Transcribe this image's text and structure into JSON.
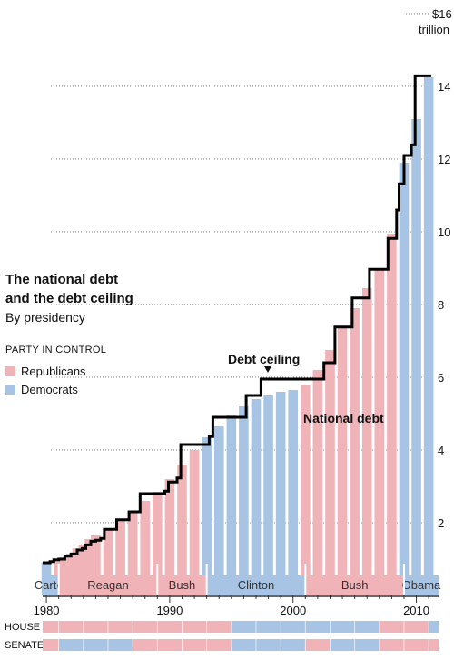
{
  "chart_data": {
    "type": "bar",
    "title_lines": [
      "The national debt",
      "and the debt ceiling"
    ],
    "subtitle": "By presidency",
    "legend": {
      "heading": "PARTY IN CONTROL",
      "items": [
        {
          "label": "Republicans",
          "color": "#f0b3b8"
        },
        {
          "label": "Democrats",
          "color": "#a8c4e4"
        }
      ]
    },
    "annotations": {
      "debt_ceiling": "Debt ceiling",
      "national_debt": "National debt"
    },
    "y_unit_top": "$16",
    "y_unit_bottom": "trillion",
    "ylim": [
      0,
      16
    ],
    "y_ticks": [
      2,
      4,
      6,
      8,
      10,
      12,
      14
    ],
    "xlim": [
      1979.7,
      2011.8
    ],
    "x_ticks": [
      1980,
      1990,
      2000,
      2010
    ],
    "debt_series": [
      {
        "year": 1980,
        "value": 0.91,
        "party": "D"
      },
      {
        "year": 1981,
        "value": 1.0,
        "party": "R"
      },
      {
        "year": 1981.5,
        "value": 1.05,
        "party": "R"
      },
      {
        "year": 1982,
        "value": 1.15,
        "party": "R"
      },
      {
        "year": 1982.5,
        "value": 1.3,
        "party": "R"
      },
      {
        "year": 1983,
        "value": 1.4,
        "party": "R"
      },
      {
        "year": 1983.5,
        "value": 1.55,
        "party": "R"
      },
      {
        "year": 1984,
        "value": 1.65,
        "party": "R"
      },
      {
        "year": 1985,
        "value": 1.85,
        "party": "R"
      },
      {
        "year": 1986,
        "value": 2.1,
        "party": "R"
      },
      {
        "year": 1987,
        "value": 2.3,
        "party": "R"
      },
      {
        "year": 1988,
        "value": 2.6,
        "party": "R"
      },
      {
        "year": 1989,
        "value": 2.85,
        "party": "R"
      },
      {
        "year": 1990,
        "value": 3.2,
        "party": "R"
      },
      {
        "year": 1991,
        "value": 3.6,
        "party": "R"
      },
      {
        "year": 1992,
        "value": 4.0,
        "party": "R"
      },
      {
        "year": 1993,
        "value": 4.35,
        "party": "D"
      },
      {
        "year": 1994,
        "value": 4.65,
        "party": "D"
      },
      {
        "year": 1995,
        "value": 4.95,
        "party": "D"
      },
      {
        "year": 1996,
        "value": 5.2,
        "party": "D"
      },
      {
        "year": 1997,
        "value": 5.4,
        "party": "D"
      },
      {
        "year": 1998,
        "value": 5.5,
        "party": "D"
      },
      {
        "year": 1999,
        "value": 5.6,
        "party": "D"
      },
      {
        "year": 2000,
        "value": 5.65,
        "party": "D"
      },
      {
        "year": 2001,
        "value": 5.8,
        "party": "R"
      },
      {
        "year": 2002,
        "value": 6.2,
        "party": "R"
      },
      {
        "year": 2003,
        "value": 6.75,
        "party": "R"
      },
      {
        "year": 2004,
        "value": 7.35,
        "party": "R"
      },
      {
        "year": 2005,
        "value": 7.9,
        "party": "R"
      },
      {
        "year": 2006,
        "value": 8.45,
        "party": "R"
      },
      {
        "year": 2007,
        "value": 9.0,
        "party": "R"
      },
      {
        "year": 2008,
        "value": 9.95,
        "party": "R"
      },
      {
        "year": 2009,
        "value": 11.9,
        "party": "D"
      },
      {
        "year": 2010,
        "value": 13.1,
        "party": "D"
      },
      {
        "year": 2011,
        "value": 14.25,
        "party": "D"
      }
    ],
    "debt_ceiling_steps": [
      [
        1979.7,
        0.9
      ],
      [
        1980.3,
        0.93
      ],
      [
        1980.6,
        0.98
      ],
      [
        1981.0,
        1.0
      ],
      [
        1981.5,
        1.08
      ],
      [
        1982.0,
        1.14
      ],
      [
        1982.5,
        1.25
      ],
      [
        1982.9,
        1.29
      ],
      [
        1983.2,
        1.39
      ],
      [
        1983.6,
        1.49
      ],
      [
        1984.0,
        1.52
      ],
      [
        1984.4,
        1.57
      ],
      [
        1984.7,
        1.82
      ],
      [
        1985.7,
        2.08
      ],
      [
        1986.7,
        2.3
      ],
      [
        1987.6,
        2.8
      ],
      [
        1989.6,
        2.87
      ],
      [
        1989.9,
        3.12
      ],
      [
        1990.6,
        3.23
      ],
      [
        1990.9,
        4.15
      ],
      [
        1993.2,
        4.37
      ],
      [
        1993.5,
        4.9
      ],
      [
        1996.2,
        5.5
      ],
      [
        1997.4,
        5.95
      ],
      [
        2002.5,
        6.4
      ],
      [
        2003.4,
        7.38
      ],
      [
        2004.8,
        8.18
      ],
      [
        2006.2,
        8.97
      ],
      [
        2007.7,
        9.82
      ],
      [
        2008.4,
        10.6
      ],
      [
        2008.6,
        11.32
      ],
      [
        2009.0,
        12.1
      ],
      [
        2009.6,
        12.39
      ],
      [
        2009.9,
        14.29
      ],
      [
        2011.2,
        14.29
      ]
    ],
    "presidencies": [
      {
        "name": "Carter",
        "start": 1979.7,
        "end": 1981.0,
        "party": "D"
      },
      {
        "name": "Reagan",
        "start": 1981.0,
        "end": 1989.0,
        "party": "R"
      },
      {
        "name": "Bush",
        "start": 1989.0,
        "end": 1993.0,
        "party": "R"
      },
      {
        "name": "Clinton",
        "start": 1993.0,
        "end": 2001.0,
        "party": "D"
      },
      {
        "name": "Bush",
        "start": 2001.0,
        "end": 2009.0,
        "party": "R"
      },
      {
        "name": "Obama",
        "start": 2009.0,
        "end": 2011.8,
        "party": "D"
      }
    ],
    "control_rows": [
      {
        "label": "HOUSE",
        "segments": [
          {
            "start": 1979.7,
            "end": 1995.0,
            "party": "R"
          },
          {
            "start": 1995.0,
            "end": 2007.0,
            "party": "D"
          },
          {
            "start": 2007.0,
            "end": 2011.0,
            "party": "R"
          },
          {
            "start": 2011.0,
            "end": 2011.8,
            "party": "D"
          }
        ]
      },
      {
        "label": "SENATE",
        "segments": [
          {
            "start": 1979.7,
            "end": 1981.0,
            "party": "R"
          },
          {
            "start": 1981.0,
            "end": 1987.0,
            "party": "D"
          },
          {
            "start": 1987.0,
            "end": 1995.0,
            "party": "R"
          },
          {
            "start": 1995.0,
            "end": 2001.0,
            "party": "D"
          },
          {
            "start": 2001.0,
            "end": 2003.0,
            "party": "R"
          },
          {
            "start": 2003.0,
            "end": 2007.0,
            "party": "D"
          },
          {
            "start": 2007.0,
            "end": 2011.8,
            "party": "R"
          }
        ]
      }
    ]
  }
}
